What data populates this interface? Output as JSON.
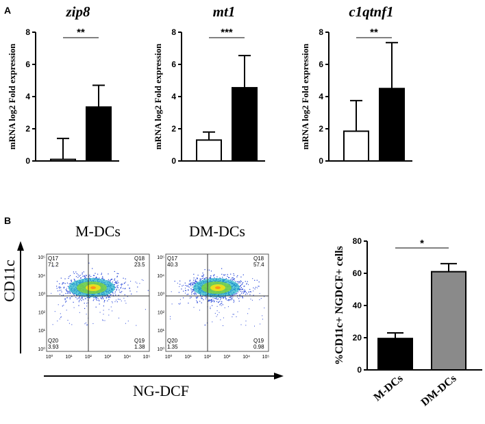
{
  "colors": {
    "open": "#ffffff",
    "filled": "#000000",
    "gray": "#8a8a8a",
    "dots": "#1f3fd8"
  },
  "panel_a": {
    "label": "A",
    "ylabel": "mRNA log2 Fold expression",
    "charts": [
      {
        "title": "zip8",
        "sig": "**",
        "ylim": [
          0,
          8
        ],
        "ticks": [
          0,
          2,
          4,
          6,
          8
        ],
        "values": [
          0.1,
          3.35
        ],
        "errors": [
          1.3,
          1.35
        ],
        "fills": [
          "open",
          "filled"
        ]
      },
      {
        "title": "mt1",
        "sig": "***",
        "ylim": [
          0,
          8
        ],
        "ticks": [
          0,
          2,
          4,
          6,
          8
        ],
        "values": [
          1.3,
          4.55
        ],
        "errors": [
          0.5,
          2.0
        ],
        "fills": [
          "open",
          "filled"
        ]
      },
      {
        "title": "c1qtnf1",
        "sig": "**",
        "ylim": [
          0,
          8
        ],
        "ticks": [
          0,
          2,
          4,
          6,
          8
        ],
        "values": [
          1.85,
          4.5
        ],
        "errors": [
          1.9,
          2.85
        ],
        "fills": [
          "open",
          "filled"
        ]
      }
    ]
  },
  "panel_b": {
    "label": "B",
    "flow": {
      "y_label": "CD11c",
      "x_label": "NG-DCF",
      "y_ticks": [
        "10⁰",
        "10¹",
        "10²",
        "10³",
        "10⁴",
        "10⁵"
      ],
      "x_ticks": [
        "10⁰",
        "10¹",
        "10²",
        "10³",
        "10⁴",
        "10⁵"
      ],
      "plots": [
        {
          "title": "M-DCs",
          "q_ul": {
            "name": "Q17",
            "value": "71.2"
          },
          "q_ur": {
            "name": "Q18",
            "value": "23.5"
          },
          "q_ll": {
            "name": "Q20",
            "value": "3.93"
          },
          "q_lr": {
            "name": "Q19",
            "value": "1.38"
          }
        },
        {
          "title": "DM-DCs",
          "q_ul": {
            "name": "Q17",
            "value": "40.3"
          },
          "q_ur": {
            "name": "Q18",
            "value": "57.4"
          },
          "q_ll": {
            "name": "Q20",
            "value": "1.35"
          },
          "q_lr": {
            "name": "Q19",
            "value": "0.98"
          }
        }
      ]
    }
  },
  "chart_data": [
    {
      "type": "bar",
      "title": "zip8",
      "categories": [
        "",
        ""
      ],
      "values": [
        0.1,
        3.35
      ],
      "errors": [
        1.3,
        1.35
      ],
      "ylabel": "mRNA log2 Fold expression",
      "ylim": [
        0,
        8
      ],
      "annotation": "**"
    },
    {
      "type": "bar",
      "title": "mt1",
      "categories": [
        "",
        ""
      ],
      "values": [
        1.3,
        4.55
      ],
      "errors": [
        0.5,
        2.0
      ],
      "ylabel": "mRNA log2 Fold expression",
      "ylim": [
        0,
        8
      ],
      "annotation": "***"
    },
    {
      "type": "bar",
      "title": "c1qtnf1",
      "categories": [
        "",
        ""
      ],
      "values": [
        1.85,
        4.5
      ],
      "errors": [
        1.9,
        2.85
      ],
      "ylabel": "mRNA log2 Fold expression",
      "ylim": [
        0,
        8
      ],
      "annotation": "**"
    },
    {
      "type": "bar",
      "title": "",
      "categories": [
        "M-DCs",
        "DM-DCs"
      ],
      "values": [
        19.5,
        61
      ],
      "errors": [
        3.5,
        5
      ],
      "ylabel": "%CD11c+ NGDCF+ cells",
      "ylim": [
        0,
        80
      ],
      "ticks": [
        0,
        20,
        40,
        60,
        80
      ],
      "fills": [
        "filled",
        "gray"
      ],
      "annotation": "*"
    }
  ]
}
